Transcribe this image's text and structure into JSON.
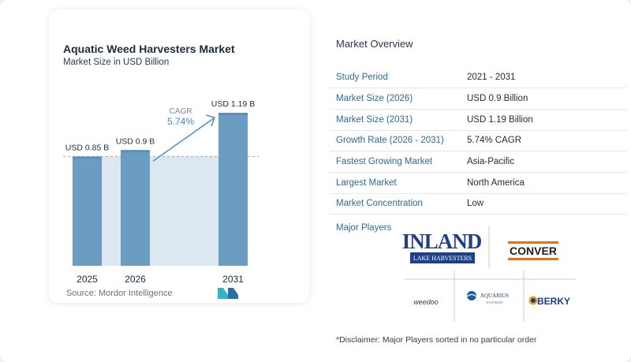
{
  "chart_data": {
    "type": "bar",
    "title": "Aquatic Weed Harvesters Market",
    "subtitle": "Market Size in USD Billion",
    "categories": [
      "2025",
      "2026",
      "2031"
    ],
    "values": [
      0.85,
      0.9,
      1.19
    ],
    "data_labels": [
      "USD 0.85 B",
      "USD 0.9 B",
      "USD 1.19 B"
    ],
    "annotation": {
      "label": "CAGR",
      "value": "5.74%"
    },
    "ylim": [
      0,
      1.19
    ],
    "colors": {
      "bar": "#6b9dc3",
      "bar_top": "#5b8fb9",
      "band": "#dce7f0",
      "arrow": "#5a93c4"
    }
  },
  "source": "Source:  Mordor Intelligence",
  "overview": {
    "title": "Market Overview",
    "rows": [
      {
        "key": "Study Period",
        "value": "2021 - 2031"
      },
      {
        "key": "Market Size (2026)",
        "value": "USD 0.9 Billion"
      },
      {
        "key": "Market Size (2031)",
        "value": "USD 1.19 Billion"
      },
      {
        "key": "Growth Rate (2026 - 2031)",
        "value": "5.74% CAGR"
      },
      {
        "key": "Fastest Growing Market",
        "value": "Asia-Pacific"
      },
      {
        "key": "Largest Market",
        "value": "North America"
      },
      {
        "key": "Market Concentration",
        "value": "Low"
      }
    ]
  },
  "players": {
    "label": "Major Players",
    "logos": [
      {
        "name": "inland-lake-harvesters-logo",
        "text": "INLAND",
        "subtext": "LAKE HARVESTERS"
      },
      {
        "name": "conver-logo",
        "text": "CONVER"
      },
      {
        "name": "weedoo-logo",
        "text": "weedoo"
      },
      {
        "name": "aquarius-systems-logo",
        "text": "AQUARIUS",
        "subtext": "SYSTEMS"
      },
      {
        "name": "berky-logo",
        "text": "BERKY"
      }
    ]
  },
  "disclaimer": "*Disclaimer: Major Players sorted in no particular order"
}
